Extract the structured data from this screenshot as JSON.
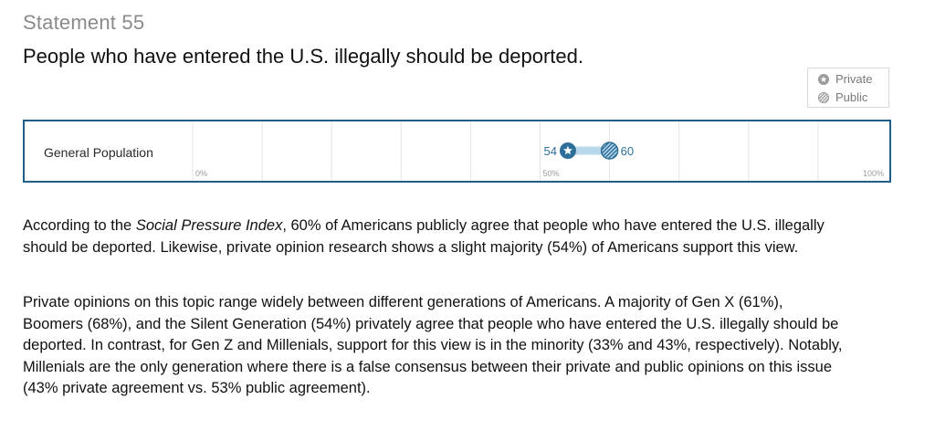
{
  "header": {
    "statement_label": "Statement 55",
    "headline": "People who have entered the U.S. illegally should be deported."
  },
  "legend": {
    "items": [
      {
        "label": "Private",
        "icon": "private-star-icon"
      },
      {
        "label": "Public",
        "icon": "public-hatched-icon"
      }
    ]
  },
  "colors": {
    "frame": "#1f5f87",
    "marker": "#2e6f9a",
    "range_bar": "#b9d8ec",
    "gridline": "#e3e3e3",
    "tick_text": "#9a9a9a",
    "legend_icon": "#9a9a9a"
  },
  "chart_data": {
    "type": "dot-range",
    "xlim": [
      0,
      100
    ],
    "grid": true,
    "legend_position": "top-right",
    "x_ticks": [
      {
        "value": 0,
        "label": "0%"
      },
      {
        "value": 50,
        "label": "50%"
      },
      {
        "value": 100,
        "label": "100%"
      }
    ],
    "rows": [
      {
        "label": "General Population",
        "private": 54,
        "public": 60
      }
    ]
  },
  "body": {
    "p1_pre": "According to the ",
    "p1_em": "Social Pressure Index",
    "p1_post": ", 60% of Americans publicly agree that people who have entered the U.S. illegally should be deported. Likewise, private opinion research shows a slight majority (54%) of Americans support this view.",
    "p2": "Private opinions on this topic range widely between different generations of Americans. A majority of Gen X (61%), Boomers (68%), and the Silent Generation (54%) privately agree that people who have entered the U.S. illegally should be deported. In contrast, for Gen Z and Millenials, support for this view is in the minority (33% and 43%, respectively). Notably, Millenials are the only generation where there is a false consensus between their private and public opinions on this issue (43% private agreement vs. 53% public agreement)."
  }
}
